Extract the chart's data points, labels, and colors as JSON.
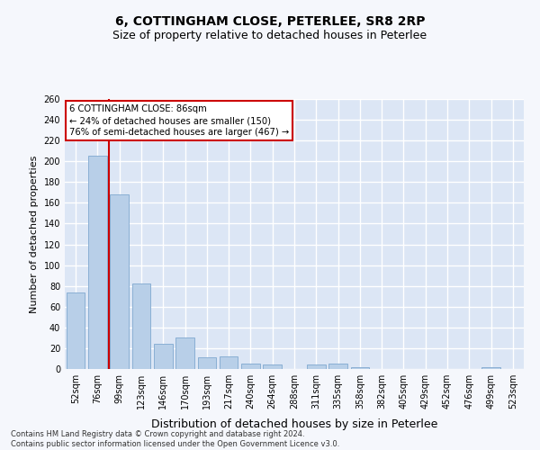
{
  "title": "6, COTTINGHAM CLOSE, PETERLEE, SR8 2RP",
  "subtitle": "Size of property relative to detached houses in Peterlee",
  "xlabel": "Distribution of detached houses by size in Peterlee",
  "ylabel": "Number of detached properties",
  "categories": [
    "52sqm",
    "76sqm",
    "99sqm",
    "123sqm",
    "146sqm",
    "170sqm",
    "193sqm",
    "217sqm",
    "240sqm",
    "264sqm",
    "288sqm",
    "311sqm",
    "335sqm",
    "358sqm",
    "382sqm",
    "405sqm",
    "429sqm",
    "452sqm",
    "476sqm",
    "499sqm",
    "523sqm"
  ],
  "values": [
    74,
    205,
    168,
    82,
    24,
    30,
    11,
    12,
    5,
    4,
    0,
    4,
    5,
    2,
    0,
    0,
    0,
    0,
    0,
    2,
    0
  ],
  "bar_color": "#b8cfe8",
  "bar_edge_color": "#8aafd4",
  "vline_color": "#cc0000",
  "vline_x_index": 1.5,
  "annotation_line1": "6 COTTINGHAM CLOSE: 86sqm",
  "annotation_line2": "← 24% of detached houses are smaller (150)",
  "annotation_line3": "76% of semi-detached houses are larger (467) →",
  "annotation_box_color": "#cc0000",
  "ylim": [
    0,
    260
  ],
  "yticks": [
    0,
    20,
    40,
    60,
    80,
    100,
    120,
    140,
    160,
    180,
    200,
    220,
    240,
    260
  ],
  "fig_bg_color": "#f5f7fc",
  "plot_bg_color": "#dce6f5",
  "grid_color": "#ffffff",
  "title_fontsize": 10,
  "subtitle_fontsize": 9,
  "ylabel_fontsize": 8,
  "xlabel_fontsize": 9,
  "tick_fontsize": 7,
  "footer_text": "Contains HM Land Registry data © Crown copyright and database right 2024.\nContains public sector information licensed under the Open Government Licence v3.0."
}
